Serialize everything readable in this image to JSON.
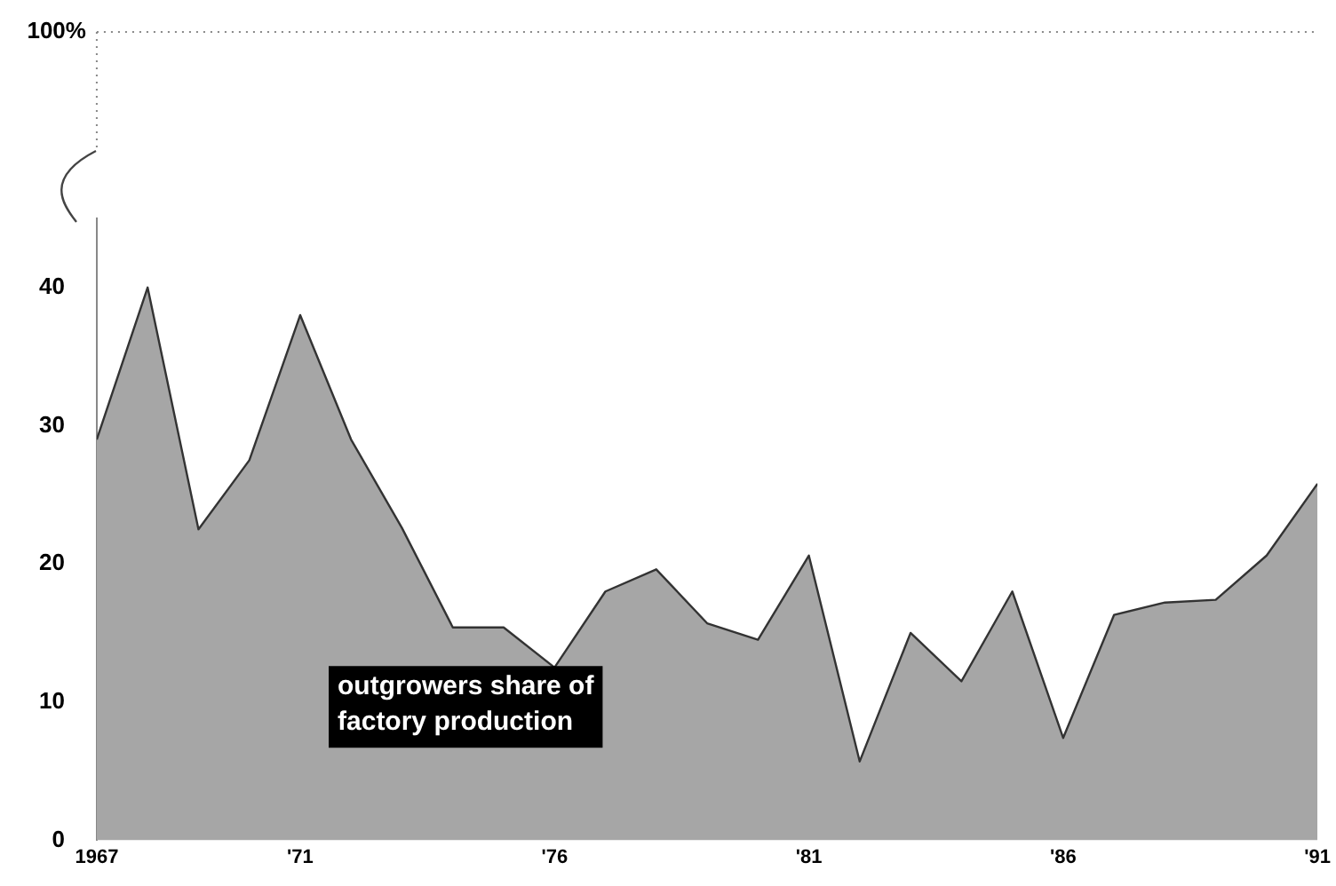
{
  "chart_data": {
    "type": "area",
    "x": [
      1967,
      1968,
      1969,
      1970,
      1971,
      1972,
      1973,
      1974,
      1975,
      1976,
      1977,
      1978,
      1979,
      1980,
      1981,
      1982,
      1983,
      1984,
      1985,
      1986,
      1987,
      1988,
      1989,
      1990,
      1991
    ],
    "series": [
      {
        "color": "#a6a6a6",
        "values": [
          29,
          40,
          22.5,
          27.5,
          38,
          29,
          22.6,
          15.4,
          15.4,
          12.5,
          18,
          19.6,
          15.7,
          14.5,
          20.6,
          5.7,
          15,
          11.5,
          18,
          7.4,
          16.3,
          17.2,
          17.4,
          20.6,
          25.8
        ]
      }
    ],
    "xlim": [
      1967,
      1991
    ],
    "xticks": [
      1967,
      {
        "value": 1971,
        "label": "'71"
      },
      {
        "value": 1976,
        "label": "'76"
      },
      {
        "value": 1981,
        "label": "'81"
      },
      {
        "value": 1986,
        "label": "'86"
      },
      {
        "value": 1991,
        "label": "'91"
      }
    ],
    "ylim": [
      0,
      45
    ],
    "yticks": [
      0,
      10,
      20,
      30,
      40
    ],
    "annotations": [
      "100%",
      "outgrowers share of factory production"
    ],
    "grid": false,
    "legend": false
  }
}
